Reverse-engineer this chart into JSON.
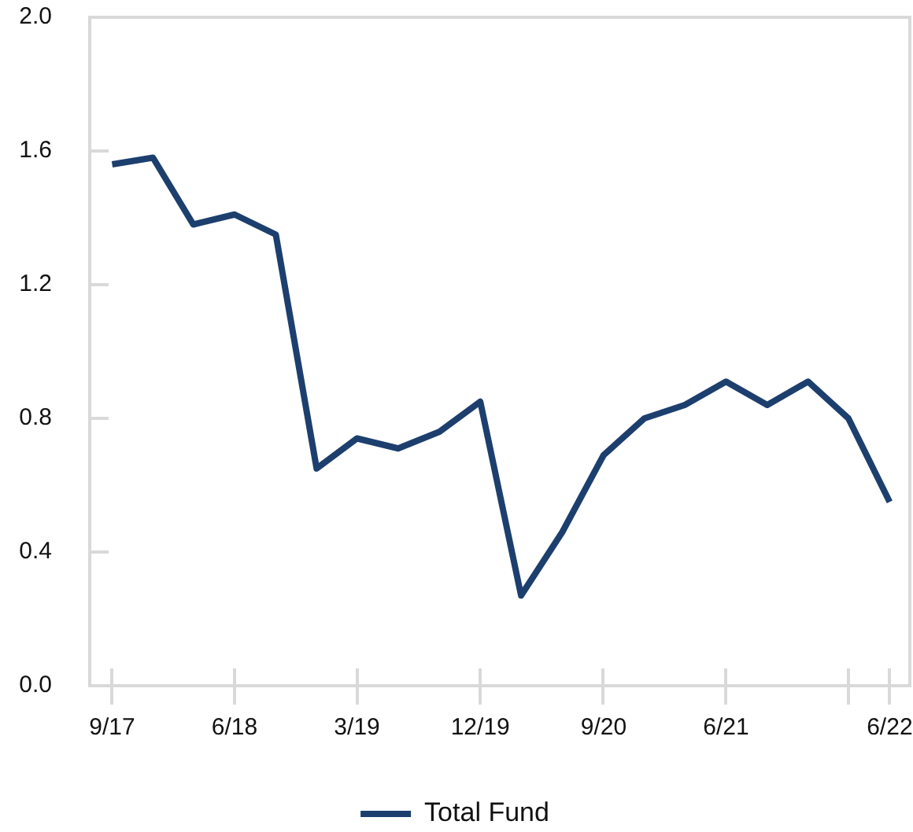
{
  "chart_data": {
    "type": "line",
    "x": [
      "2017-09",
      "2017-12",
      "2018-03",
      "2018-06",
      "2018-09",
      "2018-12",
      "2019-03",
      "2019-06",
      "2019-09",
      "2019-12",
      "2020-03",
      "2020-06",
      "2020-09",
      "2020-12",
      "2021-03",
      "2021-06",
      "2021-09",
      "2021-12",
      "2022-03",
      "2022-06"
    ],
    "series": [
      {
        "name": "Total Fund",
        "color": "#1c3f6e",
        "values": [
          1.56,
          1.58,
          1.38,
          1.41,
          1.35,
          0.65,
          0.74,
          0.71,
          0.76,
          0.85,
          0.27,
          0.46,
          0.69,
          0.8,
          0.84,
          0.91,
          0.84,
          0.91,
          0.8,
          0.55
        ]
      }
    ],
    "xlim": [
      "2017-07-13",
      "2022-07-16"
    ],
    "xticks": [
      {
        "value": "2017-09",
        "label": "9/17"
      },
      {
        "value": "2018-06",
        "label": "6/18"
      },
      {
        "value": "2019-03",
        "label": "3/19"
      },
      {
        "value": "2019-12",
        "label": "12/19"
      },
      {
        "value": "2020-09",
        "label": "9/20"
      },
      {
        "value": "2021-06",
        "label": "6/21"
      },
      {
        "value": "2022-03",
        "label": null
      },
      {
        "value": "2022-06",
        "label": "6/22"
      }
    ],
    "ylim": [
      0,
      2
    ],
    "yticks": [
      {
        "value": 0,
        "label": "0.0"
      },
      0.4,
      0.8,
      1.2,
      1.6,
      {
        "value": 2,
        "label": "2.0"
      }
    ],
    "legend": "bottom",
    "marker": "none",
    "line_style": "solid"
  }
}
